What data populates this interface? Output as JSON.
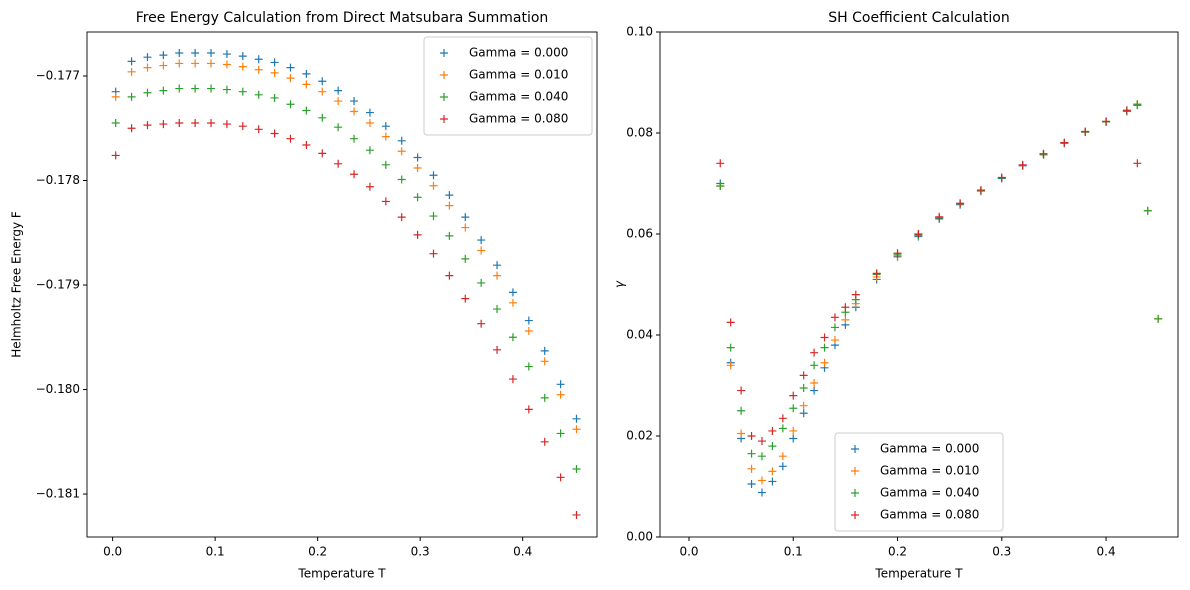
{
  "chart_data": [
    {
      "type": "scatter",
      "marker": "+",
      "title": "Free Energy Calculation from Direct Matsubara Summation",
      "xlabel": "Temperature T",
      "ylabel": "Helmholtz Free Energy F",
      "legend": "upper right",
      "xlim": [
        -0.025,
        0.4725
      ],
      "xticks": [
        {
          "value": 0,
          "label": "0.0"
        },
        0.1,
        0.2,
        0.3,
        0.4
      ],
      "ylim": [
        -0.181411,
        -0.176579
      ],
      "yticks": [
        {
          "value": -0.181,
          "label": "−0.181"
        },
        {
          "value": -0.18,
          "label": "−0.180"
        },
        {
          "value": -0.179,
          "label": "−0.179"
        },
        {
          "value": -0.178,
          "label": "−0.178"
        },
        {
          "value": -0.177,
          "label": "−0.177"
        }
      ],
      "x": [
        0.003,
        0.0185,
        0.034,
        0.0495,
        0.065,
        0.0805,
        0.096,
        0.1115,
        0.127,
        0.1425,
        0.158,
        0.1735,
        0.189,
        0.2045,
        0.22,
        0.2355,
        0.251,
        0.2665,
        0.282,
        0.2975,
        0.313,
        0.3285,
        0.344,
        0.3595,
        0.375,
        0.3905,
        0.406,
        0.4215,
        0.437,
        0.4525
      ],
      "series": [
        {
          "name": "Gamma = 0.000",
          "color": "#1f77b4",
          "values": [
            -0.17715,
            -0.17686,
            -0.17682,
            -0.1768,
            -0.17678,
            -0.17678,
            -0.17678,
            -0.17679,
            -0.17681,
            -0.17684,
            -0.17687,
            -0.17692,
            -0.17698,
            -0.17705,
            -0.17714,
            -0.17724,
            -0.17735,
            -0.17748,
            -0.17762,
            -0.17778,
            -0.17795,
            -0.17814,
            -0.17835,
            -0.17857,
            -0.17881,
            -0.17907,
            -0.17934,
            -0.17963,
            -0.17995,
            -0.18028
          ]
        },
        {
          "name": "Gamma = 0.010",
          "color": "#ff7f0e",
          "values": [
            -0.1772,
            -0.17696,
            -0.17692,
            -0.1769,
            -0.17688,
            -0.17688,
            -0.17688,
            -0.17689,
            -0.17691,
            -0.17694,
            -0.17697,
            -0.17702,
            -0.17708,
            -0.17715,
            -0.17724,
            -0.17734,
            -0.17745,
            -0.17758,
            -0.17772,
            -0.17788,
            -0.17805,
            -0.17824,
            -0.17845,
            -0.17867,
            -0.17891,
            -0.17917,
            -0.17944,
            -0.17973,
            -0.18005,
            -0.18038
          ]
        },
        {
          "name": "Gamma = 0.040",
          "color": "#2ca02c",
          "values": [
            -0.17745,
            -0.1772,
            -0.17716,
            -0.17714,
            -0.17712,
            -0.17712,
            -0.17712,
            -0.17713,
            -0.17715,
            -0.17718,
            -0.17721,
            -0.17727,
            -0.17733,
            -0.1774,
            -0.17749,
            -0.1776,
            -0.17771,
            -0.17785,
            -0.17799,
            -0.17816,
            -0.17834,
            -0.17853,
            -0.17875,
            -0.17898,
            -0.17923,
            -0.1795,
            -0.17978,
            -0.18008,
            -0.18042,
            -0.18076
          ]
        },
        {
          "name": "Gamma = 0.080",
          "color": "#d62728",
          "values": [
            -0.17776,
            -0.1775,
            -0.17747,
            -0.17746,
            -0.17745,
            -0.17745,
            -0.17745,
            -0.17746,
            -0.17748,
            -0.17751,
            -0.17755,
            -0.1776,
            -0.17766,
            -0.17774,
            -0.17784,
            -0.17794,
            -0.17806,
            -0.1782,
            -0.17835,
            -0.17852,
            -0.1787,
            -0.17891,
            -0.17913,
            -0.17937,
            -0.17962,
            -0.1799,
            -0.18019,
            -0.1805,
            -0.18084,
            -0.1812
          ]
        }
      ]
    },
    {
      "type": "scatter",
      "marker": "+",
      "title": "SH Coefficient Calculation",
      "xlabel": "Temperature T",
      "ylabel": "γ",
      "legend": "lower center",
      "xlim": [
        -0.0278,
        0.469
      ],
      "xticks": [
        {
          "value": 0,
          "label": "0.0"
        },
        0.1,
        0.2,
        0.3,
        0.4
      ],
      "ylim": [
        0,
        0.1
      ],
      "yticks": [
        {
          "value": 0,
          "label": "0.00"
        },
        {
          "value": 0.02,
          "label": "0.02"
        },
        {
          "value": 0.04,
          "label": "0.04"
        },
        {
          "value": 0.06,
          "label": "0.06"
        },
        {
          "value": 0.08,
          "label": "0.08"
        },
        {
          "value": 0.1,
          "label": "0.10"
        }
      ],
      "x": [
        0.03,
        0.04,
        0.05,
        0.06,
        0.07,
        0.08,
        0.09,
        0.1,
        0.11,
        0.12,
        0.13,
        0.14,
        0.15,
        0.16,
        0.18,
        0.2,
        0.22,
        0.24,
        0.26,
        0.28,
        0.3,
        0.32,
        0.34,
        0.36,
        0.38,
        0.4,
        0.42,
        0.43,
        0.44,
        0.45
      ],
      "series": [
        {
          "name": "Gamma = 0.000",
          "color": "#1f77b4",
          "values": [
            0.07,
            0.0345,
            0.0195,
            0.0105,
            0.0088,
            0.011,
            0.014,
            0.0195,
            0.0245,
            0.029,
            0.0335,
            0.038,
            0.042,
            0.0455,
            0.051,
            0.0555,
            0.0595,
            0.063,
            0.0658,
            0.0685,
            0.071,
            0.0735,
            0.0757,
            0.078,
            0.0802,
            0.0822,
            0.0843,
            0.0855,
            null,
            null
          ]
        },
        {
          "name": "Gamma = 0.010",
          "color": "#ff7f0e",
          "values": [
            0.0695,
            0.034,
            0.0205,
            0.0135,
            0.0112,
            0.013,
            0.016,
            0.021,
            0.026,
            0.0305,
            0.0345,
            0.039,
            0.043,
            0.0462,
            0.0515,
            0.0557,
            0.0597,
            0.0632,
            0.066,
            0.0686,
            0.0711,
            0.0736,
            0.0758,
            0.078,
            0.0802,
            0.0822,
            0.0843,
            0.0857,
            0.0646,
            0.0432
          ]
        },
        {
          "name": "Gamma = 0.040",
          "color": "#2ca02c",
          "values": [
            0.0695,
            0.0375,
            0.025,
            0.0165,
            0.016,
            0.018,
            0.0215,
            0.0255,
            0.0295,
            0.034,
            0.0375,
            0.0415,
            0.0445,
            0.047,
            0.052,
            0.056,
            0.0598,
            0.0632,
            0.066,
            0.0686,
            0.0711,
            0.0736,
            0.0758,
            0.078,
            0.0802,
            0.0822,
            0.0843,
            0.0857,
            0.0646,
            0.0432
          ]
        },
        {
          "name": "Gamma = 0.080",
          "color": "#d62728",
          "values": [
            0.074,
            0.0425,
            0.029,
            0.02,
            0.019,
            0.021,
            0.0235,
            0.028,
            0.032,
            0.0365,
            0.0395,
            0.0435,
            0.0455,
            0.048,
            0.0522,
            0.0562,
            0.06,
            0.0634,
            0.0661,
            0.0687,
            0.0712,
            0.0737,
            0.0759,
            0.0781,
            0.0803,
            0.0823,
            0.0845,
            0.074,
            null,
            null
          ]
        }
      ]
    }
  ]
}
